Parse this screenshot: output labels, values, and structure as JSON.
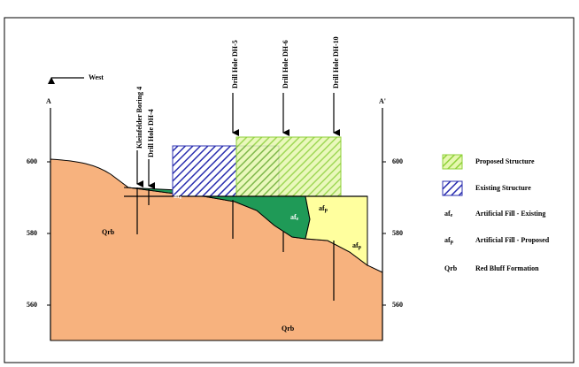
{
  "direction": "West",
  "section": {
    "start": "A",
    "end": "A'"
  },
  "elevation_ticks": [
    600,
    580,
    560
  ],
  "drill_holes": [
    "Kleinfelder Boring 4",
    "Drill Hole DH-4",
    "Drill Hole DH-5",
    "Drill Hole DH-6",
    "Drill Hole DH-10"
  ],
  "map_labels": {
    "qrb": "Qrb",
    "af": "af",
    "e": "e",
    "p": "p"
  },
  "legend": [
    {
      "symbol": "",
      "label": "Proposed Structure"
    },
    {
      "symbol": "",
      "label": "Existing Structure"
    },
    {
      "symbol": "af",
      "sub": "e",
      "label": "Artificial Fill - Existing"
    },
    {
      "symbol": "af",
      "sub": "p",
      "label": "Artificial Fill - Proposed"
    },
    {
      "symbol": "Qrb",
      "label": "Red Bluff Formation"
    }
  ]
}
